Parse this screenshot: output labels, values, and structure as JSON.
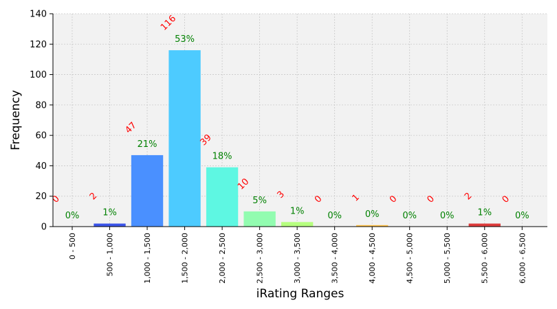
{
  "chart_data": {
    "type": "bar",
    "xlabel": "iRating Ranges",
    "ylabel": "Frequency",
    "ylim": [
      0,
      140
    ],
    "yticks": [
      0,
      20,
      40,
      60,
      80,
      100,
      120,
      140
    ],
    "grid": true,
    "categories": [
      "0 - 500",
      "500 - 1,000",
      "1,000 - 1,500",
      "1,500 - 2,000",
      "2,000 - 2,500",
      "2,500 - 3,000",
      "3,000 - 3,500",
      "3,500 - 4,000",
      "4,000 - 4,500",
      "4,500 - 5,000",
      "5,000 - 5,500",
      "5,500 - 6,000",
      "6,000 - 6,500"
    ],
    "values": [
      0,
      2,
      47,
      116,
      39,
      10,
      3,
      0,
      1,
      0,
      0,
      2,
      0
    ],
    "count_labels": [
      "0",
      "2",
      "47",
      "116",
      "39",
      "10",
      "3",
      "0",
      "1",
      "0",
      "0",
      "2",
      "0"
    ],
    "percent_labels": [
      "0%",
      "1%",
      "21%",
      "53%",
      "18%",
      "5%",
      "1%",
      "0%",
      "0%",
      "0%",
      "0%",
      "1%",
      "0%"
    ],
    "bar_colors": [
      "#1a1aff",
      "#3c55e8",
      "#4a90ff",
      "#4dcbff",
      "#5ef7e2",
      "#92fcb0",
      "#b6ff7f",
      "#e8f560",
      "#ffc24a",
      "#ff8c3a",
      "#ff5533",
      "#dd3c3c",
      "#a01818"
    ],
    "count_label_color": "#ff0000",
    "percent_label_color": "#008000",
    "plot_background": "#f2f2f2",
    "grid_color": "#c8c8c8"
  }
}
